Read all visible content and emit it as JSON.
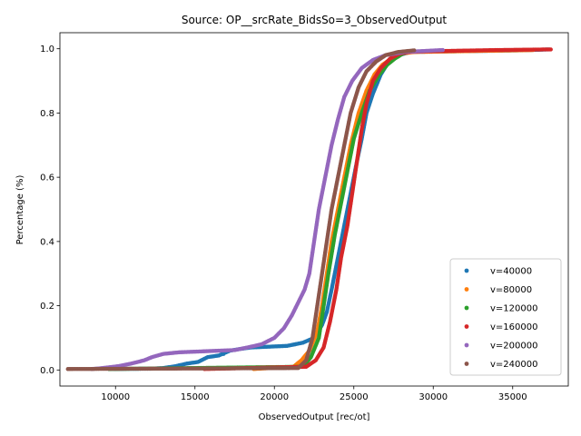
{
  "chart_data": {
    "type": "scatter",
    "title": "Source: OP__srcRate_BidsSo=3_ObservedOutput",
    "xlabel": "ObservedOutput [rec/ot]",
    "ylabel": "Percentage (%)",
    "xlim": [
      6500,
      38500
    ],
    "ylim": [
      -0.05,
      1.05
    ],
    "xticks": [
      10000,
      15000,
      20000,
      25000,
      30000,
      35000
    ],
    "yticks": [
      0.0,
      0.2,
      0.4,
      0.6,
      0.8,
      1.0
    ],
    "xtick_labels": [
      "10000",
      "15000",
      "20000",
      "25000",
      "30000",
      "35000"
    ],
    "ytick_labels": [
      "0.0",
      "0.2",
      "0.4",
      "0.6",
      "0.8",
      "1.0"
    ],
    "grid": false,
    "legend_position": "bottom-right",
    "series": [
      {
        "name": "v=40000",
        "color": "#1f77b4",
        "curve": [
          [
            9600,
            0.003
          ],
          [
            12200,
            0.004
          ],
          [
            13000,
            0.006
          ],
          [
            13800,
            0.012
          ],
          [
            14500,
            0.02
          ],
          [
            15200,
            0.025
          ],
          [
            15800,
            0.04
          ],
          [
            16500,
            0.045
          ],
          [
            17200,
            0.06
          ],
          [
            17800,
            0.065
          ],
          [
            18500,
            0.07
          ],
          [
            20800,
            0.075
          ],
          [
            21800,
            0.085
          ],
          [
            22500,
            0.1
          ],
          [
            23000,
            0.14
          ],
          [
            23300,
            0.18
          ],
          [
            23600,
            0.25
          ],
          [
            24000,
            0.35
          ],
          [
            24400,
            0.45
          ],
          [
            24800,
            0.55
          ],
          [
            25200,
            0.65
          ],
          [
            25500,
            0.72
          ],
          [
            25800,
            0.8
          ],
          [
            26200,
            0.86
          ],
          [
            26700,
            0.92
          ],
          [
            27200,
            0.96
          ],
          [
            27800,
            0.98
          ],
          [
            28600,
            0.99
          ],
          [
            35500,
            0.995
          ],
          [
            37300,
            0.998
          ]
        ],
        "extra": [
          [
            10000,
            0.003
          ],
          [
            14000,
            0.014
          ],
          [
            16800,
            0.05
          ],
          [
            21300,
            0.08
          ]
        ]
      },
      {
        "name": "v=80000",
        "color": "#ff7f0e",
        "curve": [
          [
            18700,
            0.003
          ],
          [
            21200,
            0.01
          ],
          [
            21700,
            0.03
          ],
          [
            22200,
            0.06
          ],
          [
            22700,
            0.12
          ],
          [
            23000,
            0.2
          ],
          [
            23300,
            0.3
          ],
          [
            23600,
            0.4
          ],
          [
            24000,
            0.5
          ],
          [
            24400,
            0.6
          ],
          [
            24800,
            0.7
          ],
          [
            25300,
            0.8
          ],
          [
            25800,
            0.87
          ],
          [
            26300,
            0.92
          ],
          [
            26800,
            0.95
          ],
          [
            27400,
            0.97
          ],
          [
            28000,
            0.985
          ],
          [
            28800,
            0.99
          ],
          [
            36300,
            0.996
          ]
        ],
        "extra": []
      },
      {
        "name": "v=120000",
        "color": "#2ca02c",
        "curve": [
          [
            9600,
            0.003
          ],
          [
            21800,
            0.01
          ],
          [
            22300,
            0.04
          ],
          [
            22800,
            0.1
          ],
          [
            23100,
            0.2
          ],
          [
            23400,
            0.3
          ],
          [
            23800,
            0.42
          ],
          [
            24200,
            0.52
          ],
          [
            24600,
            0.62
          ],
          [
            25000,
            0.72
          ],
          [
            25500,
            0.8
          ],
          [
            26000,
            0.87
          ],
          [
            26600,
            0.92
          ],
          [
            27100,
            0.95
          ],
          [
            27600,
            0.97
          ],
          [
            28100,
            0.985
          ],
          [
            28500,
            0.993
          ]
        ],
        "extra": []
      },
      {
        "name": "v=160000",
        "color": "#d62728",
        "curve": [
          [
            15600,
            0.003
          ],
          [
            22000,
            0.01
          ],
          [
            22600,
            0.03
          ],
          [
            23100,
            0.07
          ],
          [
            23500,
            0.15
          ],
          [
            23900,
            0.25
          ],
          [
            24200,
            0.35
          ],
          [
            24600,
            0.45
          ],
          [
            24900,
            0.55
          ],
          [
            25200,
            0.65
          ],
          [
            25500,
            0.75
          ],
          [
            25800,
            0.83
          ],
          [
            26200,
            0.9
          ],
          [
            26700,
            0.94
          ],
          [
            27300,
            0.97
          ],
          [
            27900,
            0.985
          ],
          [
            28500,
            0.99
          ],
          [
            29500,
            0.992
          ],
          [
            34000,
            0.996
          ],
          [
            37400,
            0.998
          ]
        ],
        "extra": []
      },
      {
        "name": "v=200000",
        "color": "#9467bd",
        "curve": [
          [
            8500,
            0.003
          ],
          [
            9000,
            0.005
          ],
          [
            10200,
            0.012
          ],
          [
            11000,
            0.02
          ],
          [
            11800,
            0.03
          ],
          [
            12300,
            0.04
          ],
          [
            13000,
            0.05
          ],
          [
            14000,
            0.055
          ],
          [
            17500,
            0.062
          ],
          [
            18300,
            0.07
          ],
          [
            19200,
            0.08
          ],
          [
            20000,
            0.1
          ],
          [
            20600,
            0.13
          ],
          [
            21100,
            0.17
          ],
          [
            21500,
            0.21
          ],
          [
            21900,
            0.25
          ],
          [
            22200,
            0.3
          ],
          [
            22500,
            0.4
          ],
          [
            22800,
            0.5
          ],
          [
            23200,
            0.6
          ],
          [
            23600,
            0.7
          ],
          [
            24000,
            0.78
          ],
          [
            24400,
            0.85
          ],
          [
            24900,
            0.9
          ],
          [
            25500,
            0.94
          ],
          [
            26200,
            0.965
          ],
          [
            27000,
            0.98
          ],
          [
            28200,
            0.99
          ],
          [
            30600,
            0.996
          ]
        ],
        "extra": []
      },
      {
        "name": "v=240000",
        "color": "#8c564b",
        "curve": [
          [
            7000,
            0.003
          ],
          [
            21500,
            0.006
          ],
          [
            22000,
            0.03
          ],
          [
            22400,
            0.1
          ],
          [
            22700,
            0.2
          ],
          [
            23000,
            0.3
          ],
          [
            23300,
            0.4
          ],
          [
            23600,
            0.5
          ],
          [
            24000,
            0.6
          ],
          [
            24400,
            0.7
          ],
          [
            24800,
            0.8
          ],
          [
            25300,
            0.88
          ],
          [
            25800,
            0.93
          ],
          [
            26400,
            0.96
          ],
          [
            27000,
            0.98
          ],
          [
            27800,
            0.99
          ],
          [
            28800,
            0.995
          ]
        ],
        "extra": []
      }
    ]
  }
}
